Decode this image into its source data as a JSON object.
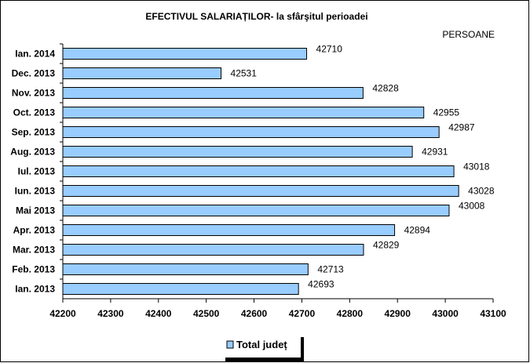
{
  "chart_data": {
    "type": "bar",
    "orientation": "horizontal",
    "title": "EFECTIVUL SALARIAȚILOR- la sfârşitul perioadei",
    "unit_label": "PERSOANE",
    "categories": [
      "Ian. 2014",
      "Dec. 2013",
      "Nov. 2013",
      "Oct. 2013",
      "Sep. 2013",
      "Aug. 2013",
      "Iul. 2013",
      "Iun. 2013",
      "Mai 2013",
      "Apr. 2013",
      "Mar. 2013",
      "Feb. 2013",
      "Ian. 2013"
    ],
    "series": [
      {
        "name": "Total județ",
        "values": [
          42710,
          42531,
          42828,
          42955,
          42987,
          42931,
          43018,
          43028,
          43008,
          42894,
          42829,
          42713,
          42693
        ],
        "color": "#99ccff"
      }
    ],
    "xlim": [
      42200,
      43100
    ],
    "xticks": [
      "42200",
      "42300",
      "42400",
      "42500",
      "42600",
      "42700",
      "42800",
      "42900",
      "43000",
      "43100"
    ],
    "grid": false,
    "legend": "bottom"
  }
}
